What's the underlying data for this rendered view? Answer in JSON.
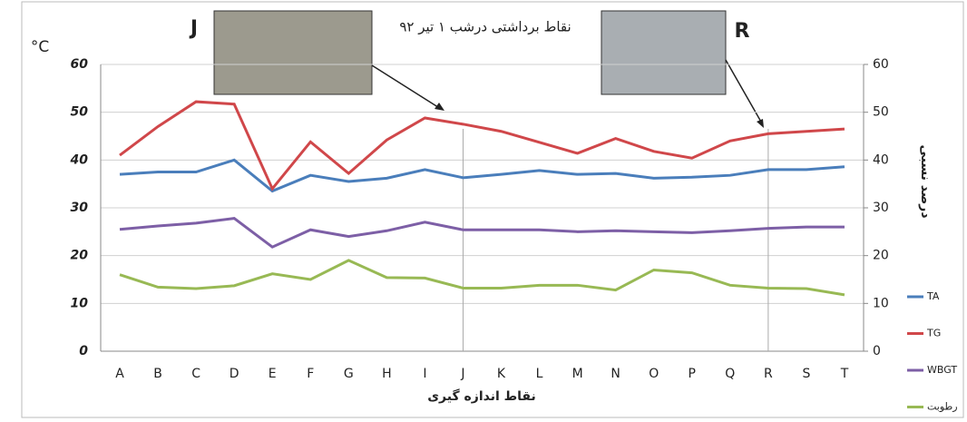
{
  "chart_data": {
    "type": "line",
    "title": "نقاط برداشتی درشب ۱ تیر ۹۲",
    "y_label": "°C",
    "y2_label": "درصد نسبی",
    "x_label": "نقاط اندازه گیری",
    "annotations": [
      "J",
      "R"
    ],
    "categories": [
      "A",
      "B",
      "C",
      "D",
      "E",
      "F",
      "G",
      "H",
      "I",
      "J",
      "K",
      "L",
      "M",
      "N",
      "O",
      "P",
      "Q",
      "R",
      "S",
      "T"
    ],
    "series": [
      {
        "name": "TA",
        "color": "#4a7ebb",
        "values": [
          37,
          37.5,
          37.5,
          40,
          33.5,
          36.8,
          35.5,
          36.2,
          38,
          36.3,
          37,
          37.8,
          37,
          37.2,
          36.2,
          36.4,
          36.8,
          38,
          38,
          38.6
        ]
      },
      {
        "name": "TG",
        "color": "#d0474a",
        "values": [
          41,
          47,
          52.2,
          51.7,
          34,
          43.8,
          37.2,
          44.2,
          48.8,
          47.5,
          46,
          43.7,
          41.4,
          44.5,
          41.8,
          40.4,
          44,
          45.5,
          46,
          46.5
        ]
      },
      {
        "name": "WBGT",
        "color": "#7d5fa6",
        "values": [
          25.5,
          26.2,
          26.8,
          27.8,
          21.8,
          25.4,
          24,
          25.2,
          27,
          25.4,
          25.4,
          25.4,
          25,
          25.2,
          25,
          24.8,
          25.2,
          25.7,
          26,
          26
        ]
      },
      {
        "name": "رطوبت",
        "color": "#98b954",
        "axis": "y2",
        "values": [
          16,
          13.4,
          13.1,
          13.7,
          16.2,
          15,
          19,
          15.4,
          15.3,
          13.2,
          13.2,
          13.8,
          13.8,
          12.8,
          17,
          16.4,
          13.8,
          13.2,
          13.1,
          11.8
        ]
      }
    ],
    "ylim": [
      0,
      60
    ],
    "yticks": [
      0,
      10,
      20,
      30,
      40,
      50,
      60
    ],
    "y2lim": [
      0,
      60
    ],
    "y2ticks": [
      0,
      10,
      20,
      30,
      40,
      50,
      60
    ],
    "grid": true,
    "legend": "right"
  }
}
